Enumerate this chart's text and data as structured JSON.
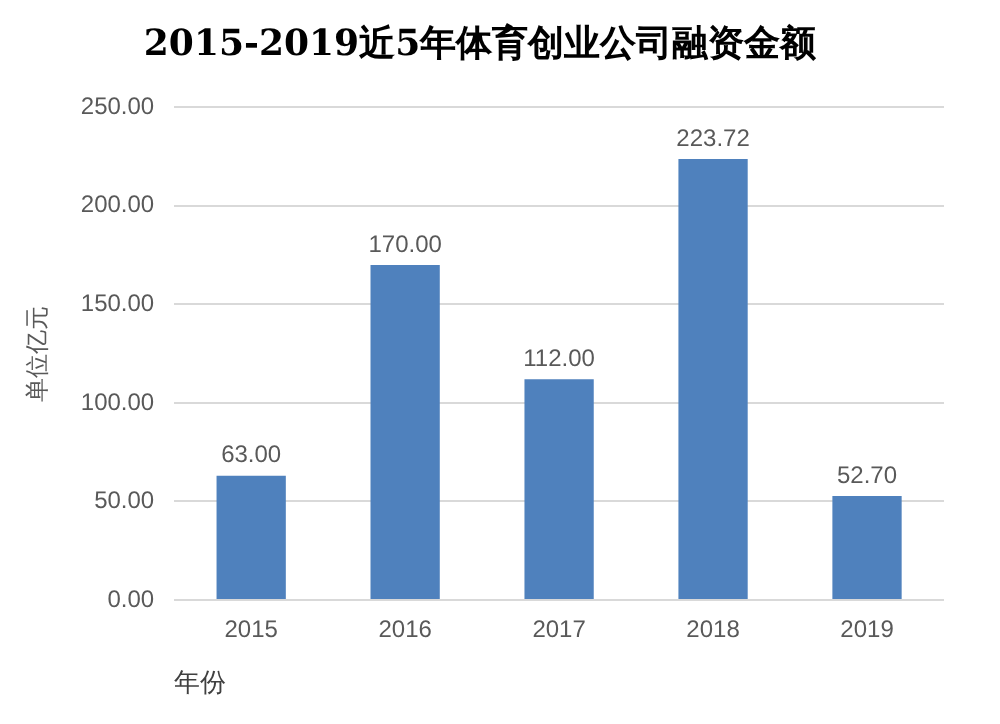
{
  "chart_data": {
    "type": "bar",
    "title": "2015-2019近5年体育创业公司融资金额",
    "xlabel": "年份",
    "ylabel": "单位亿元",
    "categories": [
      "2015",
      "2016",
      "2017",
      "2018",
      "2019"
    ],
    "values": [
      63,
      170,
      112,
      223.72,
      52.7
    ],
    "value_labels": [
      "63.00",
      "170.00",
      "112.00",
      "223.72",
      "52.70"
    ],
    "color": "#4f81bd",
    "ylim": [
      0,
      250
    ],
    "yticks": [
      {
        "value": 0,
        "label": "0.00"
      },
      {
        "value": 50,
        "label": "50.00"
      },
      {
        "value": 100,
        "label": "100.00"
      },
      {
        "value": 150,
        "label": "150.00"
      },
      {
        "value": 200,
        "label": "200.00"
      },
      {
        "value": 250,
        "label": "250.00"
      }
    ],
    "grid": "y",
    "legend": false
  }
}
